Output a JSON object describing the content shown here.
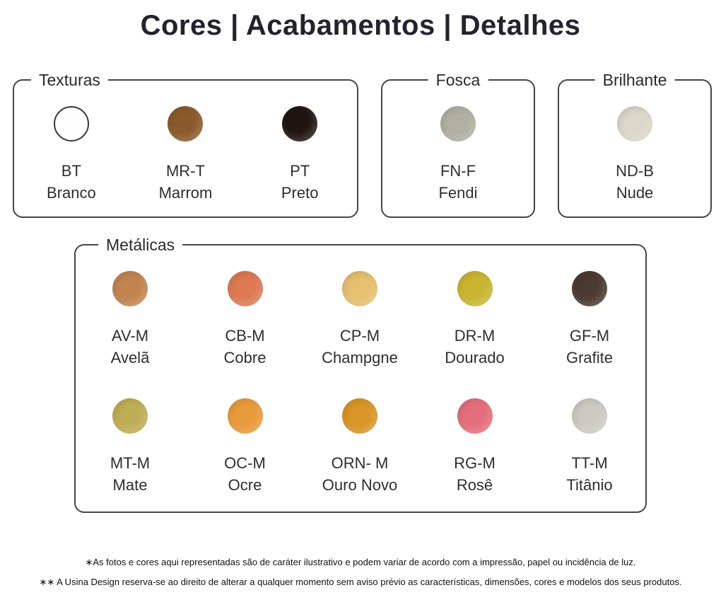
{
  "title": "Cores | Acabamentos | Detalhes",
  "theme": {
    "border_color": "#454545",
    "text_color": "#2e2e2e",
    "title_color": "#232330",
    "background": "#ffffff"
  },
  "groups": [
    {
      "label": "Texturas",
      "swatches": [
        {
          "code": "BT",
          "name": "Branco",
          "color": "#fefefe"
        },
        {
          "code": "MR-T",
          "name": "Marrom",
          "color": "#8a5a2c"
        },
        {
          "code": "PT",
          "name": "Preto",
          "color": "#211511"
        }
      ]
    },
    {
      "label": "Fosca",
      "swatches": [
        {
          "code": "FN-F",
          "name": "Fendi",
          "color": "#b1b0a2"
        }
      ]
    },
    {
      "label": "Brilhante",
      "swatches": [
        {
          "code": "ND-B",
          "name": "Nude",
          "color": "#dbd7ca"
        }
      ]
    },
    {
      "label": "Metálicas",
      "swatches": [
        {
          "code": "AV-M",
          "name": "Avelã",
          "color": "#c28350"
        },
        {
          "code": "CB-M",
          "name": "Cobre",
          "color": "#dc7a52"
        },
        {
          "code": "CP-M",
          "name": "Champgne",
          "color": "#e7bf6f"
        },
        {
          "code": "DR-M",
          "name": "Dourado",
          "color": "#c9b531"
        },
        {
          "code": "GF-M",
          "name": "Grafite",
          "color": "#4b3a31"
        },
        {
          "code": "MT-M",
          "name": "Mate",
          "color": "#bfae55"
        },
        {
          "code": "OC-M",
          "name": "Ocre",
          "color": "#e99b3c"
        },
        {
          "code": "ORN- M",
          "name": "Ouro Novo",
          "color": "#d99527"
        },
        {
          "code": "RG-M",
          "name": "Rosê",
          "color": "#e56e7b"
        },
        {
          "code": "TT-M",
          "name": "Titânio",
          "color": "#cccbc3"
        }
      ]
    }
  ],
  "footnotes": [
    "∗As fotos e cores aqui representadas são de caráter ilustrativo e podem variar de acordo com a impressão, papel ou incidência de luz.",
    "∗∗ A Usina Design reserva-se ao direito de alterar a qualquer momento sem aviso prévio as características, dimensões, cores e modelos dos seus produtos."
  ]
}
